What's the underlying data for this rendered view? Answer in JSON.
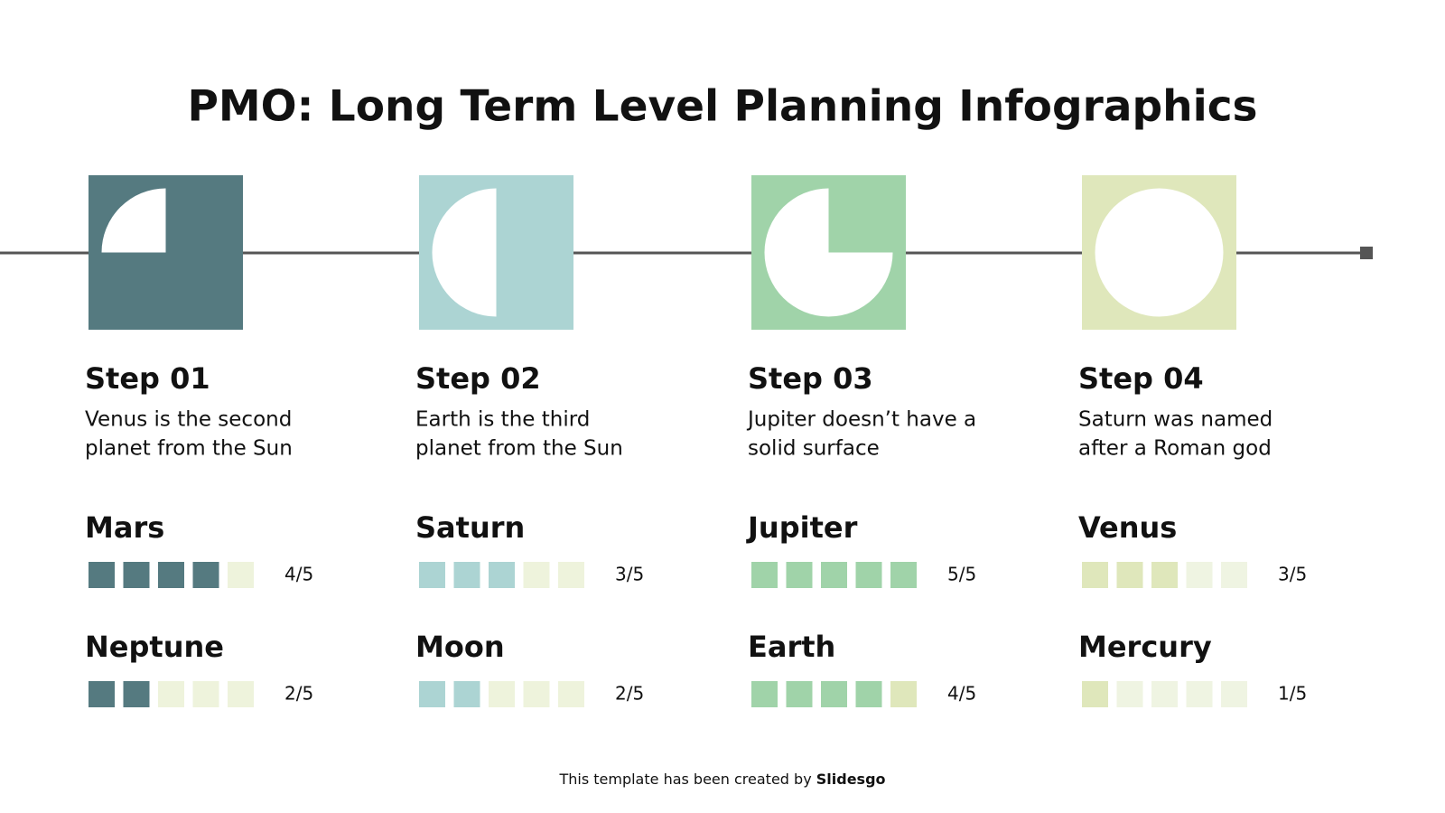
{
  "title": "PMO: Long Term Level Planning Infographics",
  "steps": [
    {
      "label": "Step 01",
      "description": [
        "Venus is the second",
        "planet from the Sun"
      ],
      "ratings": [
        {
          "name": "Mars",
          "score": "4/5"
        },
        {
          "name": "Neptune",
          "score": "2/5"
        }
      ]
    },
    {
      "label": "Step 02",
      "description": [
        "Earth is the third",
        "planet from the Sun"
      ],
      "ratings": [
        {
          "name": "Saturn",
          "score": "3/5"
        },
        {
          "name": "Moon",
          "score": "2/5"
        }
      ]
    },
    {
      "label": "Step 03",
      "description": [
        "Jupiter doesn’t have a",
        "solid surface"
      ],
      "ratings": [
        {
          "name": "Jupiter",
          "score": "5/5"
        },
        {
          "name": "Earth",
          "score": "4/5"
        }
      ]
    },
    {
      "label": "Step 04",
      "description": [
        "Saturn was named",
        "after a Roman god"
      ],
      "ratings": [
        {
          "name": "Venus",
          "score": "3/5"
        },
        {
          "name": "Mercury",
          "score": "1/5"
        }
      ]
    }
  ],
  "footer": {
    "text": "This template has been created by",
    "brand": "Slidesgo"
  }
}
